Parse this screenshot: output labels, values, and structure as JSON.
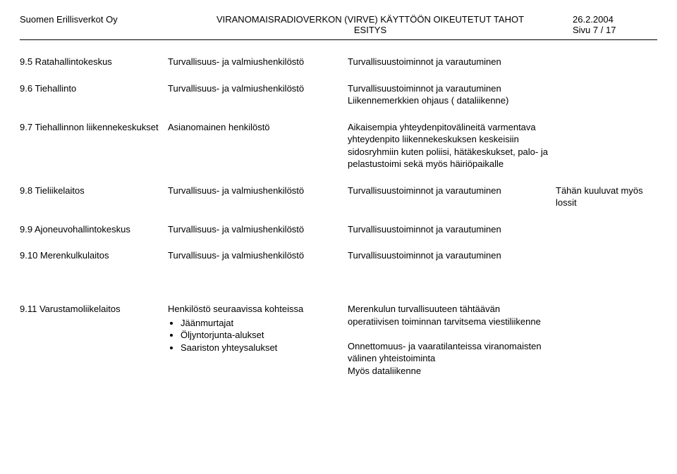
{
  "header": {
    "company": "Suomen Erillisverkot Oy",
    "title_line1": "VIRANOMAISRADIOVERKON (VIRVE) KÄYTTÖÖN OIKEUTETUT TAHOT",
    "title_line2": "ESITYS",
    "date": "26.2.2004",
    "page": "Sivu 7 / 17"
  },
  "rows": [
    {
      "c1": "9.5 Ratahallintokeskus",
      "c2": "Turvallisuus- ja valmiushenkilöstö",
      "c3": "Turvallisuustoiminnot ja varautuminen",
      "c4": ""
    },
    {
      "c1": "9.6 Tiehallinto",
      "c2": "Turvallisuus- ja valmiushenkilöstö",
      "c3": "Turvallisuustoiminnot ja varautuminen\nLiikennemerkkien ohjaus ( dataliikenne)",
      "c4": ""
    },
    {
      "c1": "9.7 Tiehallinnon liikennekeskukset",
      "c2": "Asianomainen henkilöstö",
      "c3": "Aikaisempia yhteydenpitovälineitä varmentava yhteydenpito liikennekeskuksen keskeisiin sidosryhmiin kuten poliisi, hätäkeskukset, palo- ja pelastustoimi sekä myös häiriöpaikalle",
      "c4": ""
    },
    {
      "c1": "9.8 Tieliikelaitos",
      "c2": "Turvallisuus- ja valmiushenkilöstö",
      "c3": "Turvallisuustoiminnot ja varautuminen",
      "c4": "Tähän kuuluvat myös lossit"
    },
    {
      "c1": "9.9 Ajoneuvohallintokeskus",
      "c2": "Turvallisuus- ja valmiushenkilöstö",
      "c3": "Turvallisuustoiminnot ja varautuminen",
      "c4": ""
    },
    {
      "c1": "9.10 Merenkulkulaitos",
      "c2": "Turvallisuus- ja valmiushenkilöstö",
      "c3": "Turvallisuustoiminnot ja varautuminen",
      "c4": ""
    }
  ],
  "row11": {
    "c1": "9.11 Varustamoliikelaitos",
    "c2_lead": "Henkilöstö seuraavissa kohteissa",
    "c2_items": [
      "Jäänmurtajat",
      "Öljyntorjunta-alukset",
      "Saariston yhteysalukset"
    ],
    "c3": "Merenkulun turvallisuuteen tähtäävän operatiivisen toiminnan tarvitsema viestiliikenne\n\nOnnettomuus- ja vaaratilanteissa viranomaisten välinen yhteistoiminta\nMyös dataliikenne",
    "c4": ""
  }
}
